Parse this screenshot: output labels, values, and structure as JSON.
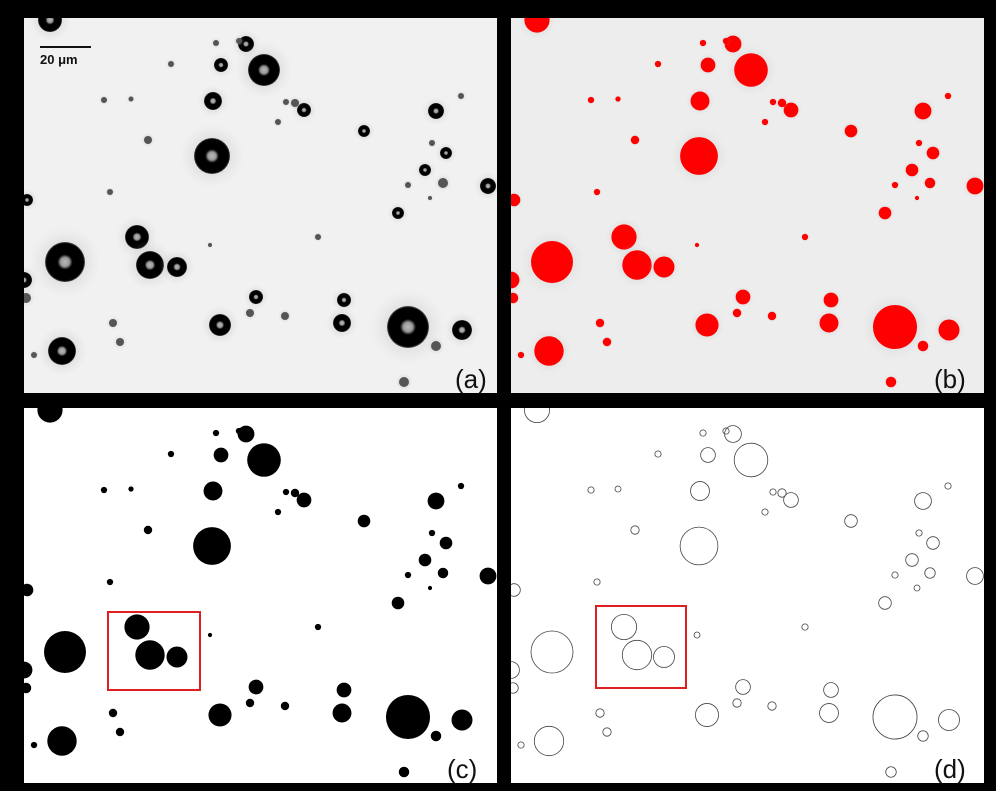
{
  "scale_bar": "20 μm",
  "panels": [
    {
      "label": "(a)"
    },
    {
      "label": "(b)"
    },
    {
      "label": "(c)"
    },
    {
      "label": "(d)"
    }
  ]
}
